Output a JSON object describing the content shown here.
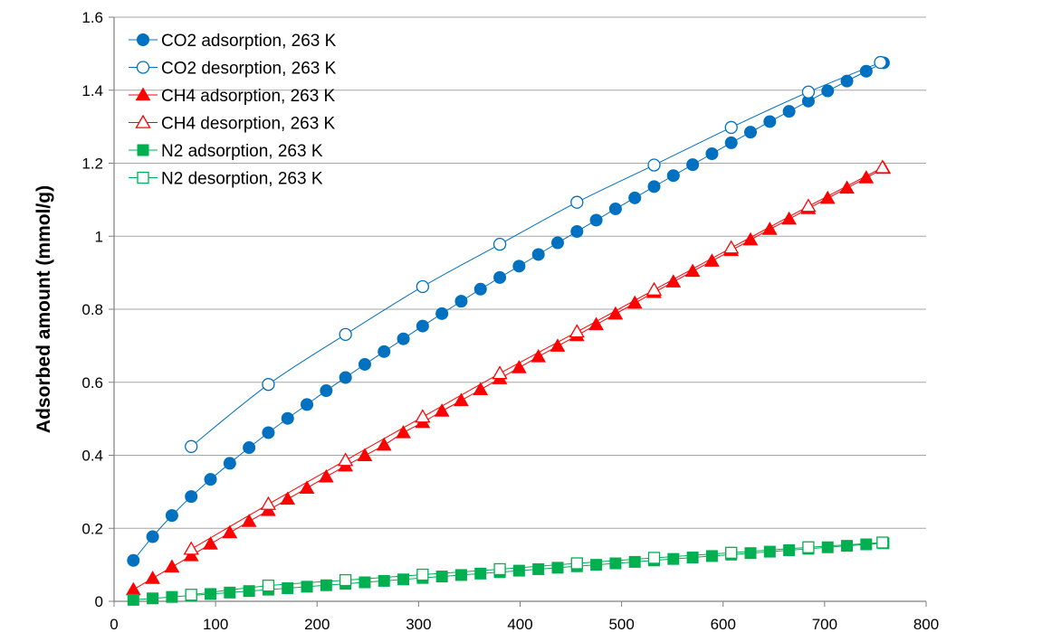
{
  "chart_data": {
    "type": "scatter",
    "title": "",
    "xlabel": "",
    "ylabel": "Adsorbed amount (mmol/g)",
    "xlim": [
      0,
      800
    ],
    "ylim": [
      0,
      1.6
    ],
    "x_ticks": [
      "0",
      "100",
      "200",
      "300",
      "400",
      "500",
      "600",
      "700",
      "800"
    ],
    "y_ticks": [
      "0",
      "0.2",
      "0.4",
      "0.6",
      "0.8",
      "1",
      "1.2",
      "1.4",
      "1.6"
    ],
    "grid": "horizontal",
    "legend_position": "top-left",
    "series": [
      {
        "name": "CO2 adsorption, 263 K",
        "color": "#0070C0",
        "marker": "circle",
        "filled": true,
        "x": [
          19,
          38,
          57,
          76,
          95,
          114,
          133,
          152,
          171,
          190,
          209,
          228,
          247,
          266,
          285,
          304,
          323,
          342,
          361,
          380,
          399,
          418,
          437,
          456,
          475,
          494,
          513,
          532,
          551,
          570,
          589,
          608,
          627,
          646,
          665,
          684,
          703,
          722,
          741,
          758
        ],
        "y": [
          0.112,
          0.177,
          0.235,
          0.287,
          0.334,
          0.378,
          0.421,
          0.462,
          0.501,
          0.539,
          0.577,
          0.613,
          0.649,
          0.684,
          0.719,
          0.754,
          0.788,
          0.822,
          0.855,
          0.887,
          0.918,
          0.95,
          0.982,
          1.013,
          1.044,
          1.075,
          1.105,
          1.136,
          1.166,
          1.196,
          1.226,
          1.256,
          1.285,
          1.314,
          1.342,
          1.37,
          1.398,
          1.425,
          1.452,
          1.475
        ]
      },
      {
        "name": "CO2 desorption, 263 K",
        "color": "#0070C0",
        "marker": "circle",
        "filled": false,
        "x": [
          755,
          684,
          608,
          532,
          456,
          380,
          304,
          228,
          152,
          76
        ],
        "y": [
          1.476,
          1.395,
          1.298,
          1.195,
          1.093,
          0.978,
          0.862,
          0.731,
          0.594,
          0.424
        ]
      },
      {
        "name": "CH4 adsorption, 263 K",
        "color": "#FF0000",
        "marker": "triangle",
        "filled": true,
        "x": [
          19,
          38,
          57,
          76,
          95,
          114,
          133,
          152,
          171,
          190,
          209,
          228,
          247,
          266,
          285,
          304,
          323,
          342,
          361,
          380,
          399,
          418,
          437,
          456,
          475,
          494,
          513,
          532,
          551,
          570,
          589,
          608,
          627,
          646,
          665,
          684,
          703,
          722,
          741,
          758
        ],
        "y": [
          0.032,
          0.063,
          0.094,
          0.125,
          0.157,
          0.188,
          0.219,
          0.249,
          0.28,
          0.31,
          0.341,
          0.371,
          0.399,
          0.428,
          0.462,
          0.49,
          0.521,
          0.55,
          0.58,
          0.61,
          0.64,
          0.67,
          0.699,
          0.728,
          0.758,
          0.787,
          0.817,
          0.846,
          0.875,
          0.904,
          0.932,
          0.961,
          0.99,
          1.019,
          1.047,
          1.076,
          1.104,
          1.132,
          1.16,
          1.186
        ]
      },
      {
        "name": "CH4 desorption, 263 K",
        "color": "#FF0000",
        "marker": "triangle",
        "filled": false,
        "x": [
          757,
          684,
          608,
          532,
          456,
          380,
          304,
          228,
          152,
          76
        ],
        "y": [
          1.188,
          1.082,
          0.968,
          0.853,
          0.738,
          0.624,
          0.505,
          0.386,
          0.266,
          0.143
        ]
      },
      {
        "name": "N2 adsorption, 263 K",
        "color": "#00B050",
        "marker": "square",
        "filled": true,
        "x": [
          19,
          38,
          57,
          76,
          95,
          114,
          133,
          152,
          171,
          190,
          209,
          228,
          247,
          266,
          285,
          304,
          323,
          342,
          361,
          380,
          399,
          418,
          437,
          456,
          475,
          494,
          513,
          532,
          551,
          570,
          589,
          608,
          627,
          646,
          665,
          684,
          703,
          722,
          741,
          758
        ],
        "y": [
          0.004,
          0.008,
          0.012,
          0.016,
          0.02,
          0.024,
          0.028,
          0.032,
          0.036,
          0.04,
          0.044,
          0.048,
          0.052,
          0.056,
          0.06,
          0.064,
          0.068,
          0.072,
          0.076,
          0.08,
          0.084,
          0.088,
          0.092,
          0.096,
          0.1,
          0.104,
          0.108,
          0.112,
          0.116,
          0.12,
          0.124,
          0.128,
          0.132,
          0.136,
          0.14,
          0.144,
          0.148,
          0.152,
          0.156,
          0.159
        ]
      },
      {
        "name": "N2 desorption, 263 K",
        "color": "#00B050",
        "marker": "square",
        "filled": false,
        "x": [
          757,
          684,
          608,
          532,
          456,
          380,
          304,
          228,
          152,
          76
        ],
        "y": [
          0.161,
          0.148,
          0.133,
          0.119,
          0.104,
          0.088,
          0.073,
          0.058,
          0.043,
          0.018
        ]
      }
    ]
  }
}
